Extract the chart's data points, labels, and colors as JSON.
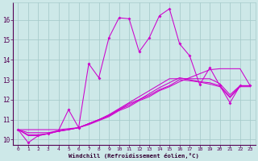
{
  "xlabel": "Windchill (Refroidissement éolien,°C)",
  "background_color": "#cde8e8",
  "grid_color": "#a8cccc",
  "line_color": "#cc00cc",
  "xlim": [
    -0.5,
    23.5
  ],
  "ylim": [
    9.75,
    16.85
  ],
  "xticks": [
    0,
    1,
    2,
    3,
    4,
    5,
    6,
    7,
    8,
    9,
    10,
    11,
    12,
    13,
    14,
    15,
    16,
    17,
    18,
    19,
    20,
    21,
    22,
    23
  ],
  "yticks": [
    10,
    11,
    12,
    13,
    14,
    15,
    16
  ],
  "series_main": [
    10.5,
    9.85,
    10.2,
    10.3,
    10.45,
    11.5,
    10.6,
    13.8,
    13.1,
    15.1,
    16.1,
    16.05,
    14.4,
    15.1,
    16.2,
    16.55,
    14.8,
    14.2,
    12.75,
    13.6,
    12.7,
    11.85,
    12.7,
    12.7
  ],
  "series_smooth": [
    [
      10.5,
      10.5,
      10.5,
      10.5,
      10.5,
      10.55,
      10.6,
      10.75,
      10.95,
      11.15,
      11.45,
      11.65,
      11.95,
      12.15,
      12.45,
      12.65,
      12.9,
      13.1,
      13.3,
      13.5,
      13.55,
      13.55,
      13.55,
      12.7
    ],
    [
      10.5,
      10.35,
      10.35,
      10.35,
      10.45,
      10.5,
      10.6,
      10.8,
      11.0,
      11.25,
      11.55,
      11.85,
      12.15,
      12.45,
      12.75,
      13.05,
      13.05,
      13.05,
      13.05,
      13.05,
      12.8,
      12.25,
      12.7,
      12.7
    ],
    [
      10.5,
      10.25,
      10.25,
      10.3,
      10.42,
      10.5,
      10.6,
      10.8,
      11.0,
      11.2,
      11.5,
      11.8,
      12.0,
      12.3,
      12.6,
      12.85,
      13.1,
      13.0,
      12.9,
      12.85,
      12.7,
      12.15,
      12.7,
      12.7
    ],
    [
      10.5,
      10.2,
      10.2,
      10.3,
      10.42,
      10.5,
      10.6,
      10.8,
      11.0,
      11.2,
      11.5,
      11.72,
      12.0,
      12.22,
      12.5,
      12.7,
      13.0,
      12.95,
      12.88,
      12.78,
      12.65,
      12.1,
      12.65,
      12.65
    ]
  ]
}
